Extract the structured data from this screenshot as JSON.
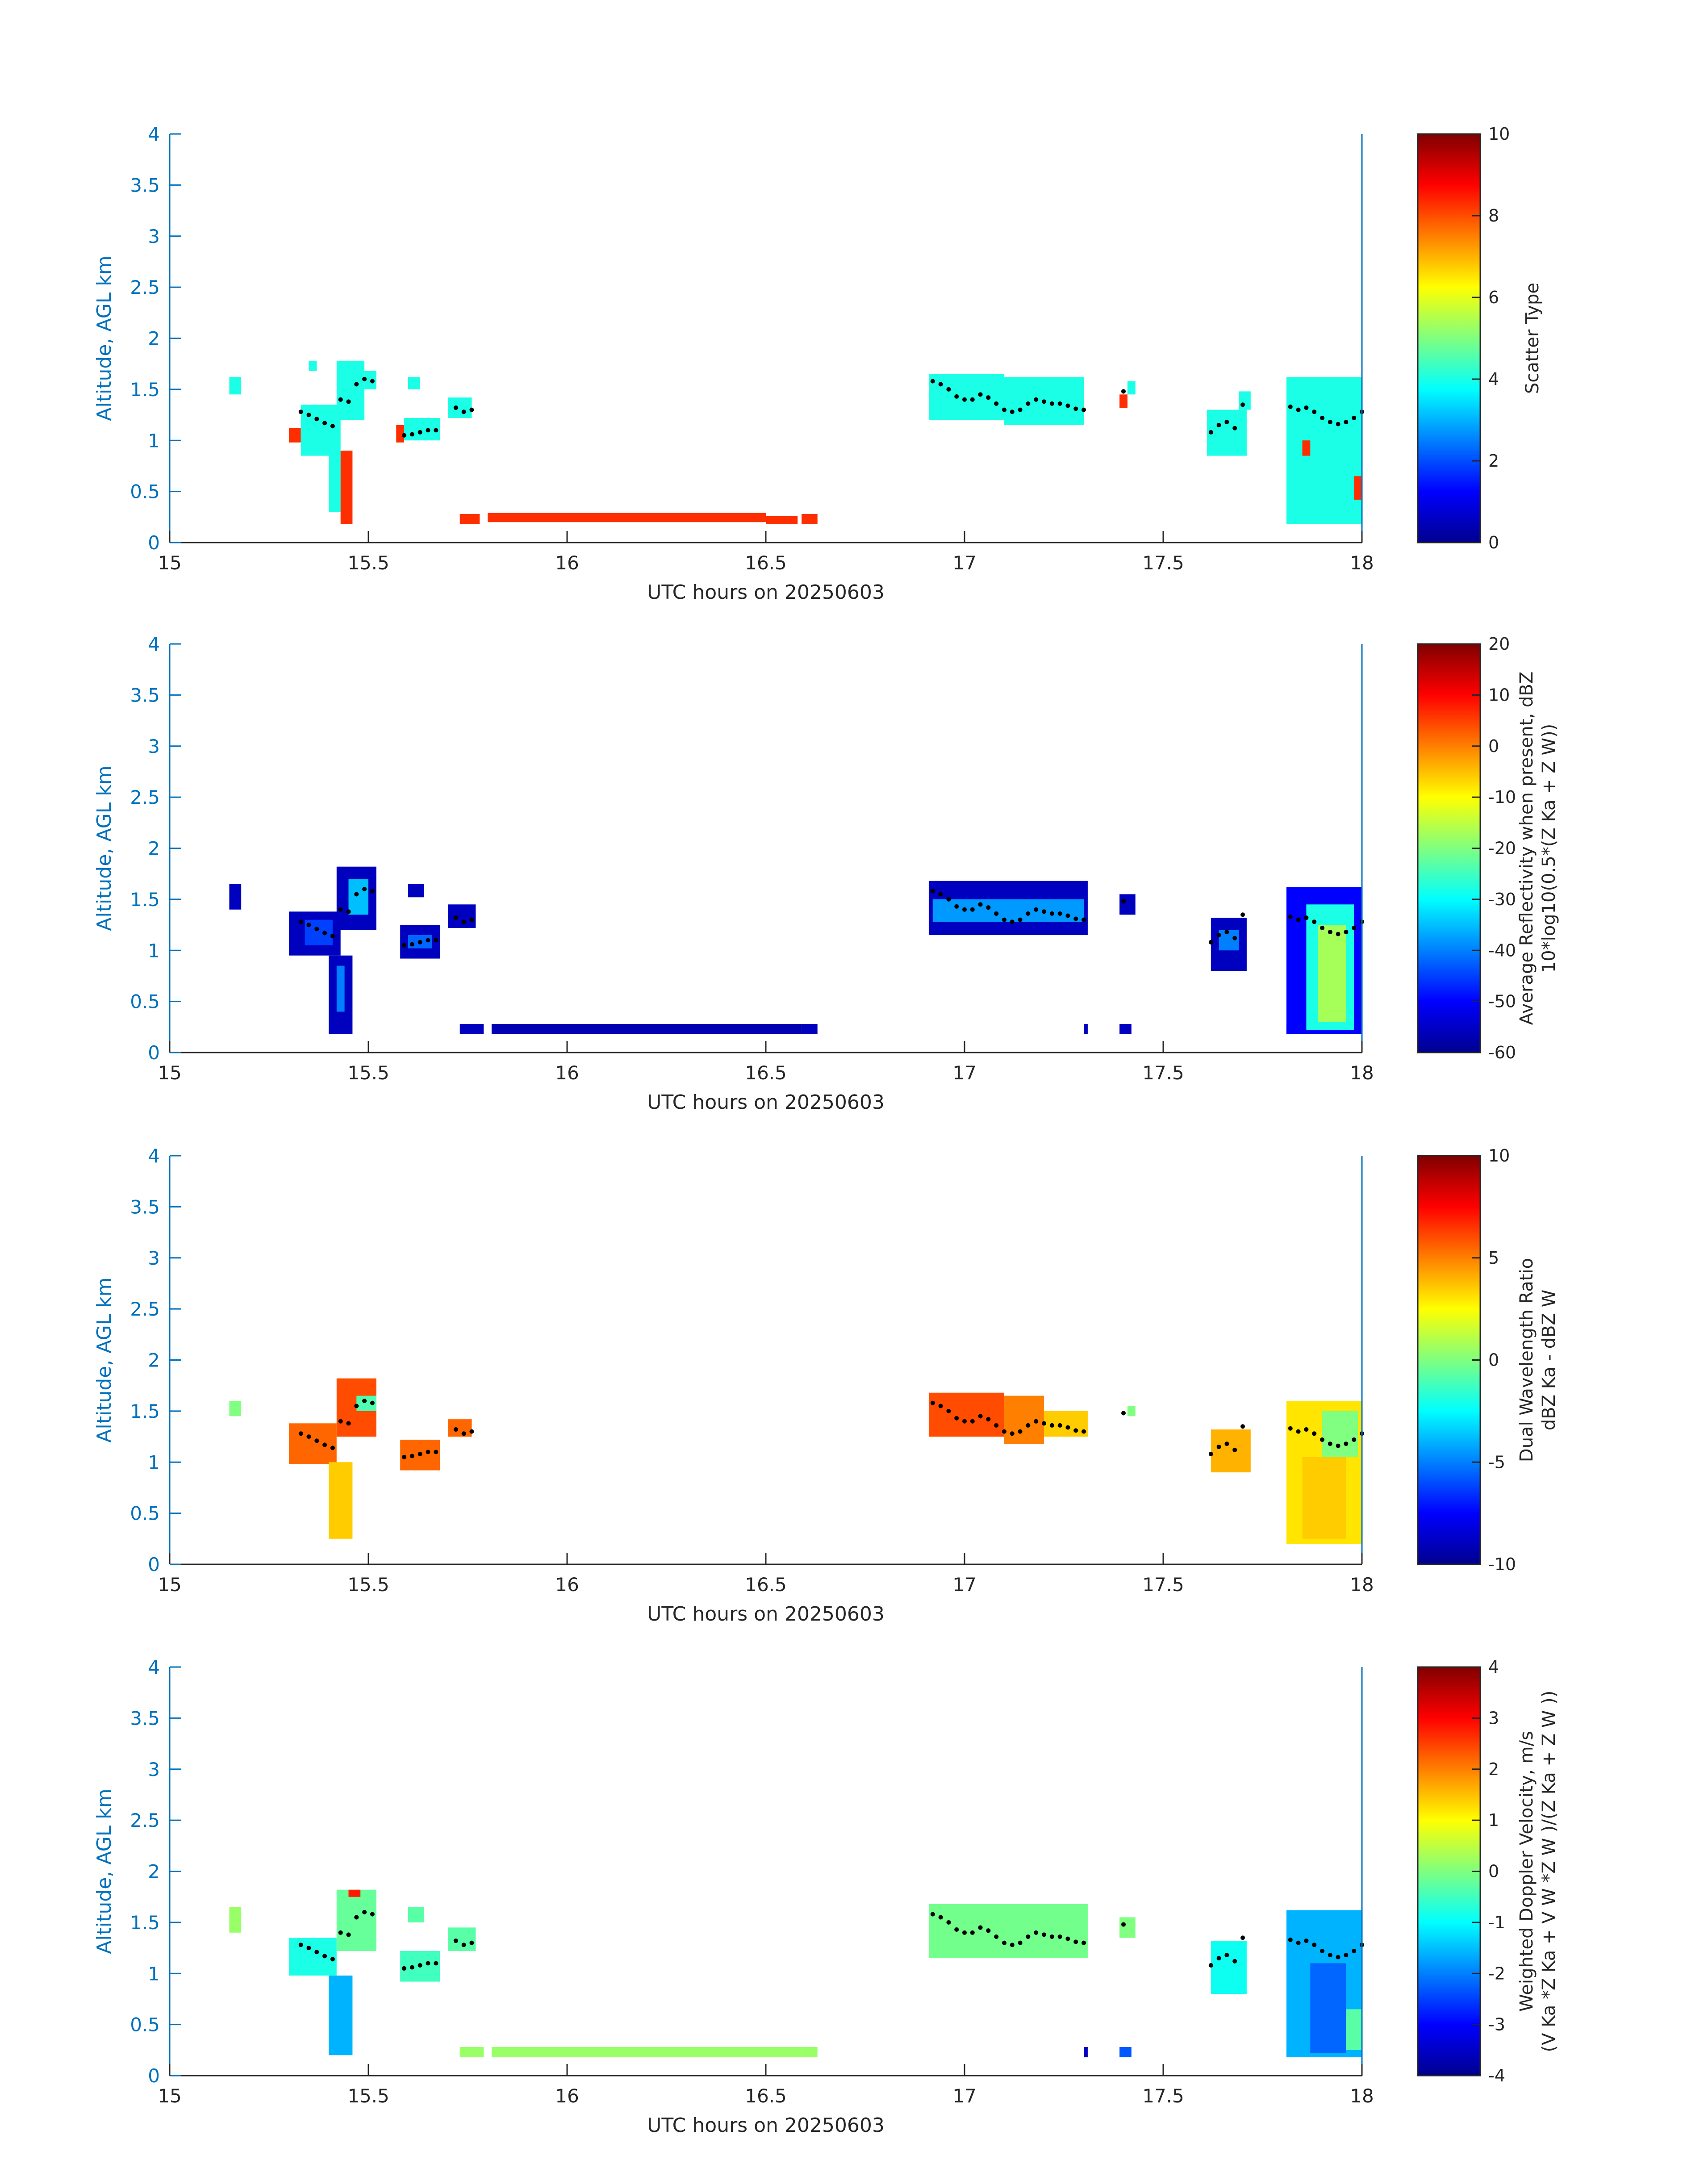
{
  "figure": {
    "x_label": "UTC hours on 20250603",
    "y_label": "Altitude, AGL km"
  },
  "chart_data": [
    {
      "type": "heatmap",
      "name": "scatter-type",
      "xlabel": "UTC hours on 20250603",
      "ylabel": "Altitude, AGL km",
      "xlim": [
        15,
        18
      ],
      "ylim": [
        0,
        4
      ],
      "x_ticks": [
        "15",
        "15.5",
        "16",
        "16.5",
        "17",
        "17.5",
        "18"
      ],
      "y_ticks": [
        "0",
        "0.5",
        "1",
        "1.5",
        "2",
        "2.5",
        "3",
        "3.5",
        "4"
      ],
      "colorbar": {
        "label": "Scatter Type",
        "label2": "",
        "range": [
          0,
          10
        ],
        "ticks": [
          "0",
          "2",
          "4",
          "6",
          "8",
          "10"
        ]
      },
      "regions": [
        {
          "x0": 15.15,
          "x1": 15.18,
          "y0": 1.45,
          "y1": 1.62,
          "value": 4
        },
        {
          "x0": 15.3,
          "x1": 15.33,
          "y0": 0.98,
          "y1": 1.12,
          "value": 8.3
        },
        {
          "x0": 15.33,
          "x1": 15.43,
          "y0": 0.85,
          "y1": 1.35,
          "value": 4
        },
        {
          "x0": 15.4,
          "x1": 15.43,
          "y0": 0.3,
          "y1": 0.9,
          "value": 4
        },
        {
          "x0": 15.43,
          "x1": 15.46,
          "y0": 0.18,
          "y1": 0.9,
          "value": 8.3
        },
        {
          "x0": 15.42,
          "x1": 15.49,
          "y0": 1.2,
          "y1": 1.78,
          "value": 4
        },
        {
          "x0": 15.49,
          "x1": 15.52,
          "y0": 1.5,
          "y1": 1.68,
          "value": 4
        },
        {
          "x0": 15.35,
          "x1": 15.37,
          "y0": 1.68,
          "y1": 1.78,
          "value": 4
        },
        {
          "x0": 15.57,
          "x1": 15.59,
          "y0": 0.98,
          "y1": 1.15,
          "value": 8.3
        },
        {
          "x0": 15.59,
          "x1": 15.68,
          "y0": 1.0,
          "y1": 1.22,
          "value": 4
        },
        {
          "x0": 15.6,
          "x1": 15.63,
          "y0": 1.5,
          "y1": 1.62,
          "value": 4
        },
        {
          "x0": 15.7,
          "x1": 15.76,
          "y0": 1.22,
          "y1": 1.42,
          "value": 4
        },
        {
          "x0": 15.73,
          "x1": 15.78,
          "y0": 0.18,
          "y1": 0.28,
          "value": 8.3
        },
        {
          "x0": 15.8,
          "x1": 16.5,
          "y0": 0.2,
          "y1": 0.29,
          "value": 8.3
        },
        {
          "x0": 16.5,
          "x1": 16.58,
          "y0": 0.18,
          "y1": 0.26,
          "value": 8.3
        },
        {
          "x0": 16.59,
          "x1": 16.63,
          "y0": 0.18,
          "y1": 0.28,
          "value": 8.3
        },
        {
          "x0": 16.91,
          "x1": 17.1,
          "y0": 1.2,
          "y1": 1.65,
          "value": 4
        },
        {
          "x0": 17.1,
          "x1": 17.3,
          "y0": 1.15,
          "y1": 1.62,
          "value": 4
        },
        {
          "x0": 17.39,
          "x1": 17.41,
          "y0": 1.32,
          "y1": 1.45,
          "value": 8.3
        },
        {
          "x0": 17.41,
          "x1": 17.43,
          "y0": 1.45,
          "y1": 1.58,
          "value": 4
        },
        {
          "x0": 17.61,
          "x1": 17.71,
          "y0": 0.85,
          "y1": 1.3,
          "value": 4
        },
        {
          "x0": 17.69,
          "x1": 17.72,
          "y0": 1.3,
          "y1": 1.48,
          "value": 4
        },
        {
          "x0": 17.81,
          "x1": 18.0,
          "y0": 0.18,
          "y1": 1.62,
          "value": 4
        },
        {
          "x0": 17.85,
          "x1": 17.87,
          "y0": 0.85,
          "y1": 1.0,
          "value": 8.3
        },
        {
          "x0": 17.98,
          "x1": 18.0,
          "y0": 0.42,
          "y1": 0.65,
          "value": 8.3
        }
      ]
    },
    {
      "type": "heatmap",
      "name": "reflectivity",
      "xlabel": "UTC hours on 20250603",
      "ylabel": "Altitude, AGL km",
      "xlim": [
        15,
        18
      ],
      "ylim": [
        0,
        4
      ],
      "x_ticks": [
        "15",
        "15.5",
        "16",
        "16.5",
        "17",
        "17.5",
        "18"
      ],
      "y_ticks": [
        "0",
        "0.5",
        "1",
        "1.5",
        "2",
        "2.5",
        "3",
        "3.5",
        "4"
      ],
      "colorbar": {
        "label": "Average Reflectivity when present, dBZ",
        "label2": "10*log10(0.5*(Z Ka + Z W))",
        "range": [
          -60,
          20
        ],
        "ticks": [
          "-60",
          "-50",
          "-40",
          "-30",
          "-20",
          "-10",
          "0",
          "10",
          "20"
        ]
      },
      "regions": [
        {
          "x0": 15.15,
          "x1": 15.18,
          "y0": 1.4,
          "y1": 1.65,
          "value": -55
        },
        {
          "x0": 15.3,
          "x1": 15.43,
          "y0": 0.95,
          "y1": 1.38,
          "value": -55
        },
        {
          "x0": 15.34,
          "x1": 15.41,
          "y0": 1.05,
          "y1": 1.3,
          "value": -45
        },
        {
          "x0": 15.4,
          "x1": 15.46,
          "y0": 0.18,
          "y1": 0.95,
          "value": -55
        },
        {
          "x0": 15.42,
          "x1": 15.44,
          "y0": 0.4,
          "y1": 0.85,
          "value": -40
        },
        {
          "x0": 15.42,
          "x1": 15.52,
          "y0": 1.2,
          "y1": 1.82,
          "value": -55
        },
        {
          "x0": 15.45,
          "x1": 15.5,
          "y0": 1.35,
          "y1": 1.7,
          "value": -35
        },
        {
          "x0": 15.58,
          "x1": 15.68,
          "y0": 0.92,
          "y1": 1.25,
          "value": -55
        },
        {
          "x0": 15.6,
          "x1": 15.66,
          "y0": 1.02,
          "y1": 1.15,
          "value": -42
        },
        {
          "x0": 15.6,
          "x1": 15.64,
          "y0": 1.52,
          "y1": 1.65,
          "value": -55
        },
        {
          "x0": 15.7,
          "x1": 15.77,
          "y0": 1.22,
          "y1": 1.45,
          "value": -55
        },
        {
          "x0": 15.73,
          "x1": 15.79,
          "y0": 0.18,
          "y1": 0.28,
          "value": -55
        },
        {
          "x0": 15.81,
          "x1": 16.59,
          "y0": 0.18,
          "y1": 0.28,
          "value": -56
        },
        {
          "x0": 16.59,
          "x1": 16.63,
          "y0": 0.18,
          "y1": 0.28,
          "value": -55
        },
        {
          "x0": 16.91,
          "x1": 17.31,
          "y0": 1.15,
          "y1": 1.68,
          "value": -55
        },
        {
          "x0": 16.92,
          "x1": 17.3,
          "y0": 1.28,
          "y1": 1.5,
          "value": -38
        },
        {
          "x0": 17.3,
          "x1": 17.31,
          "y0": 0.18,
          "y1": 0.28,
          "value": -55
        },
        {
          "x0": 17.39,
          "x1": 17.42,
          "y0": 0.18,
          "y1": 0.28,
          "value": -55
        },
        {
          "x0": 17.39,
          "x1": 17.43,
          "y0": 1.35,
          "y1": 1.55,
          "value": -55
        },
        {
          "x0": 17.62,
          "x1": 17.71,
          "y0": 0.8,
          "y1": 1.32,
          "value": -55
        },
        {
          "x0": 17.64,
          "x1": 17.69,
          "y0": 1.0,
          "y1": 1.2,
          "value": -40
        },
        {
          "x0": 17.81,
          "x1": 17.83,
          "y0": 0.18,
          "y1": 0.28,
          "value": -55
        },
        {
          "x0": 17.81,
          "x1": 18.0,
          "y0": 0.18,
          "y1": 1.62,
          "value": -50
        },
        {
          "x0": 17.86,
          "x1": 17.98,
          "y0": 0.22,
          "y1": 1.45,
          "value": -28
        },
        {
          "x0": 17.89,
          "x1": 17.96,
          "y0": 0.3,
          "y1": 1.25,
          "value": -17
        }
      ]
    },
    {
      "type": "heatmap",
      "name": "dual-wavelength-ratio",
      "xlabel": "UTC hours on 20250603",
      "ylabel": "Altitude, AGL km",
      "xlim": [
        15,
        18
      ],
      "ylim": [
        0,
        4
      ],
      "x_ticks": [
        "15",
        "15.5",
        "16",
        "16.5",
        "17",
        "17.5",
        "18"
      ],
      "y_ticks": [
        "0",
        "0.5",
        "1",
        "1.5",
        "2",
        "2.5",
        "3",
        "3.5",
        "4"
      ],
      "colorbar": {
        "label": "Dual Wavelength Ratio",
        "label2": "dBZ Ka - dBZ W",
        "range": [
          -10,
          10
        ],
        "ticks": [
          "-10",
          "-5",
          "0",
          "5",
          "10"
        ]
      },
      "regions": [
        {
          "x0": 15.15,
          "x1": 15.18,
          "y0": 1.45,
          "y1": 1.6,
          "value": 0
        },
        {
          "x0": 15.3,
          "x1": 15.42,
          "y0": 0.98,
          "y1": 1.38,
          "value": 5.5
        },
        {
          "x0": 15.4,
          "x1": 15.46,
          "y0": 0.25,
          "y1": 1.0,
          "value": 3.5
        },
        {
          "x0": 15.42,
          "x1": 15.52,
          "y0": 1.25,
          "y1": 1.82,
          "value": 6
        },
        {
          "x0": 15.47,
          "x1": 15.52,
          "y0": 1.5,
          "y1": 1.65,
          "value": -1
        },
        {
          "x0": 15.58,
          "x1": 15.68,
          "y0": 0.92,
          "y1": 1.22,
          "value": 5.5
        },
        {
          "x0": 15.7,
          "x1": 15.76,
          "y0": 1.25,
          "y1": 1.42,
          "value": 5.5
        },
        {
          "x0": 16.91,
          "x1": 17.1,
          "y0": 1.25,
          "y1": 1.68,
          "value": 6
        },
        {
          "x0": 17.1,
          "x1": 17.2,
          "y0": 1.18,
          "y1": 1.65,
          "value": 5
        },
        {
          "x0": 17.2,
          "x1": 17.31,
          "y0": 1.25,
          "y1": 1.5,
          "value": 3.5
        },
        {
          "x0": 17.41,
          "x1": 17.43,
          "y0": 1.45,
          "y1": 1.55,
          "value": 0
        },
        {
          "x0": 17.62,
          "x1": 17.72,
          "y0": 0.9,
          "y1": 1.32,
          "value": 4
        },
        {
          "x0": 17.81,
          "x1": 18.0,
          "y0": 0.2,
          "y1": 1.6,
          "value": 3
        },
        {
          "x0": 17.85,
          "x1": 17.96,
          "y0": 0.25,
          "y1": 1.05,
          "value": 3.5
        },
        {
          "x0": 17.9,
          "x1": 17.99,
          "y0": 1.05,
          "y1": 1.5,
          "value": 0
        }
      ]
    },
    {
      "type": "heatmap",
      "name": "doppler-velocity",
      "xlabel": "UTC hours on 20250603",
      "ylabel": "Altitude, AGL km",
      "xlim": [
        15,
        18
      ],
      "ylim": [
        0,
        4
      ],
      "x_ticks": [
        "15",
        "15.5",
        "16",
        "16.5",
        "17",
        "17.5",
        "18"
      ],
      "y_ticks": [
        "0",
        "0.5",
        "1",
        "1.5",
        "2",
        "2.5",
        "3",
        "3.5",
        "4"
      ],
      "colorbar": {
        "label": "Weighted Doppler Velocity, m/s",
        "label2": "(V Ka *Z Ka + V W *Z W )/(Z Ka + Z W ))",
        "range": [
          -4,
          4
        ],
        "ticks": [
          "-4",
          "-3",
          "-2",
          "-1",
          "0",
          "1",
          "2",
          "3",
          "4"
        ]
      },
      "regions": [
        {
          "x0": 15.15,
          "x1": 15.18,
          "y0": 1.4,
          "y1": 1.65,
          "value": 0.2
        },
        {
          "x0": 15.3,
          "x1": 15.42,
          "y0": 0.98,
          "y1": 1.35,
          "value": -0.8
        },
        {
          "x0": 15.4,
          "x1": 15.46,
          "y0": 0.2,
          "y1": 0.98,
          "value": -1.6
        },
        {
          "x0": 15.42,
          "x1": 15.52,
          "y0": 1.22,
          "y1": 1.82,
          "value": -0.2
        },
        {
          "x0": 15.45,
          "x1": 15.48,
          "y0": 1.75,
          "y1": 1.82,
          "value": 2.8
        },
        {
          "x0": 15.58,
          "x1": 15.68,
          "y0": 0.92,
          "y1": 1.22,
          "value": -0.5
        },
        {
          "x0": 15.6,
          "x1": 15.64,
          "y0": 1.5,
          "y1": 1.65,
          "value": -0.3
        },
        {
          "x0": 15.7,
          "x1": 15.77,
          "y0": 1.22,
          "y1": 1.45,
          "value": -0.3
        },
        {
          "x0": 15.73,
          "x1": 15.79,
          "y0": 0.18,
          "y1": 0.28,
          "value": 0.2
        },
        {
          "x0": 15.81,
          "x1": 16.59,
          "y0": 0.18,
          "y1": 0.28,
          "value": 0.2
        },
        {
          "x0": 16.59,
          "x1": 16.63,
          "y0": 0.18,
          "y1": 0.28,
          "value": 0.2
        },
        {
          "x0": 16.91,
          "x1": 17.31,
          "y0": 1.15,
          "y1": 1.68,
          "value": -0.1
        },
        {
          "x0": 17.3,
          "x1": 17.31,
          "y0": 0.18,
          "y1": 0.28,
          "value": -3.5
        },
        {
          "x0": 17.39,
          "x1": 17.42,
          "y0": 0.18,
          "y1": 0.28,
          "value": -2.3
        },
        {
          "x0": 17.39,
          "x1": 17.43,
          "y0": 1.35,
          "y1": 1.55,
          "value": 0
        },
        {
          "x0": 17.62,
          "x1": 17.71,
          "y0": 0.8,
          "y1": 1.32,
          "value": -0.9
        },
        {
          "x0": 17.81,
          "x1": 17.83,
          "y0": 0.18,
          "y1": 0.28,
          "value": -2
        },
        {
          "x0": 17.81,
          "x1": 18.0,
          "y0": 0.18,
          "y1": 1.62,
          "value": -1.6
        },
        {
          "x0": 17.87,
          "x1": 17.96,
          "y0": 0.22,
          "y1": 1.1,
          "value": -2.2
        },
        {
          "x0": 17.96,
          "x1": 18.0,
          "y0": 0.25,
          "y1": 0.65,
          "value": -0.3
        }
      ]
    }
  ],
  "cloud_top_line": {
    "x": [
      15.33,
      15.35,
      15.37,
      15.39,
      15.41,
      15.43,
      15.45,
      15.47,
      15.49,
      15.51,
      15.59,
      15.61,
      15.63,
      15.65,
      15.67,
      15.72,
      15.74,
      15.76,
      16.92,
      16.94,
      16.96,
      16.98,
      17.0,
      17.02,
      17.04,
      17.06,
      17.08,
      17.1,
      17.12,
      17.14,
      17.16,
      17.18,
      17.2,
      17.22,
      17.24,
      17.26,
      17.28,
      17.3,
      17.4,
      17.62,
      17.64,
      17.66,
      17.68,
      17.7,
      17.82,
      17.84,
      17.86,
      17.88,
      17.9,
      17.92,
      17.94,
      17.96,
      17.98,
      18.0
    ],
    "y": [
      1.28,
      1.25,
      1.21,
      1.17,
      1.14,
      1.4,
      1.38,
      1.55,
      1.6,
      1.58,
      1.05,
      1.06,
      1.08,
      1.1,
      1.1,
      1.32,
      1.28,
      1.3,
      1.58,
      1.55,
      1.5,
      1.43,
      1.4,
      1.4,
      1.45,
      1.42,
      1.36,
      1.3,
      1.28,
      1.3,
      1.36,
      1.4,
      1.38,
      1.36,
      1.36,
      1.34,
      1.31,
      1.3,
      1.48,
      1.08,
      1.15,
      1.18,
      1.12,
      1.35,
      1.33,
      1.3,
      1.32,
      1.28,
      1.22,
      1.18,
      1.16,
      1.18,
      1.22,
      1.28
    ]
  }
}
